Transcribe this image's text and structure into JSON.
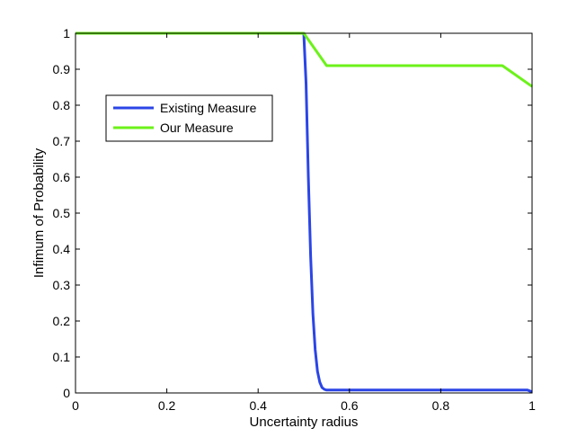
{
  "chart_data": {
    "type": "line",
    "xlabel": "Uncertainty radius",
    "ylabel": "Infimum of Probability",
    "xlim": [
      0,
      1
    ],
    "ylim": [
      0,
      1
    ],
    "xticks": [
      0,
      0.2,
      0.4,
      0.6,
      0.8,
      1
    ],
    "yticks": [
      0,
      0.1,
      0.2,
      0.3,
      0.4,
      0.5,
      0.6,
      0.7,
      0.8,
      0.9,
      1
    ],
    "xtick_labels": [
      "0",
      "0.2",
      "0.4",
      "0.6",
      "0.8",
      "1"
    ],
    "ytick_labels": [
      "0",
      "0.1",
      "0.2",
      "0.3",
      "0.4",
      "0.5",
      "0.6",
      "0.7",
      "0.8",
      "0.9",
      "1"
    ],
    "grid": false,
    "legend_position": "top-left",
    "series": [
      {
        "name": "Existing Measure",
        "color": "#2b45e6",
        "x": [
          0,
          0.5,
          0.505,
          0.51,
          0.515,
          0.52,
          0.525,
          0.53,
          0.535,
          0.54,
          0.545,
          0.55,
          0.6,
          0.7,
          0.8,
          0.9,
          0.99,
          1.0
        ],
        "y": [
          1,
          1,
          0.86,
          0.6,
          0.38,
          0.22,
          0.12,
          0.06,
          0.03,
          0.015,
          0.01,
          0.008,
          0.008,
          0.008,
          0.008,
          0.008,
          0.008,
          0.003
        ]
      },
      {
        "name": "Our Measure",
        "color": "#6cf21a",
        "x": [
          0,
          0.5,
          0.55,
          0.935,
          1.0
        ],
        "y": [
          1,
          1,
          0.91,
          0.91,
          0.852
        ]
      }
    ]
  }
}
